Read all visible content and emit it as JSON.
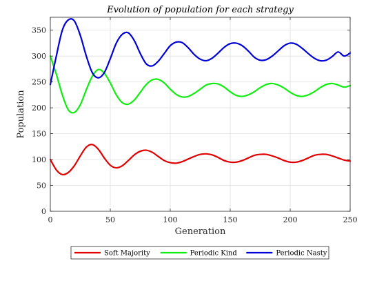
{
  "chart_data": {
    "type": "line",
    "title": "Evolution of population for each strategy",
    "xlabel": "Generation",
    "ylabel": "Population",
    "xlim": [
      0,
      250
    ],
    "ylim": [
      0,
      375
    ],
    "xticks": [
      0,
      50,
      100,
      150,
      200,
      250
    ],
    "yticks": [
      0,
      50,
      100,
      150,
      200,
      250,
      300,
      350
    ],
    "grid": true,
    "legend_position": "bottom-outside",
    "series": [
      {
        "name": "Soft Majority",
        "color": "#e00000",
        "x": [
          0,
          5,
          10,
          15,
          20,
          25,
          30,
          35,
          40,
          45,
          50,
          55,
          60,
          65,
          70,
          75,
          80,
          85,
          90,
          95,
          100,
          105,
          110,
          115,
          120,
          125,
          130,
          135,
          140,
          145,
          150,
          155,
          160,
          165,
          170,
          175,
          180,
          185,
          190,
          195,
          200,
          205,
          210,
          215,
          220,
          225,
          230,
          235,
          240,
          245,
          250
        ],
        "values": [
          100,
          80,
          71,
          75,
          88,
          107,
          124,
          129,
          120,
          103,
          89,
          84,
          88,
          98,
          109,
          116,
          118,
          114,
          106,
          98,
          94,
          93,
          96,
          101,
          106,
          110,
          111,
          109,
          104,
          98,
          95,
          95,
          98,
          103,
          108,
          110,
          110,
          107,
          103,
          98,
          95,
          95,
          98,
          103,
          108,
          110,
          110,
          107,
          103,
          99,
          97
        ]
      },
      {
        "name": "Periodic Kind",
        "color": "#10ee10",
        "x": [
          0,
          5,
          10,
          15,
          20,
          25,
          30,
          35,
          40,
          45,
          50,
          55,
          60,
          65,
          70,
          75,
          80,
          85,
          90,
          95,
          100,
          105,
          110,
          115,
          120,
          125,
          130,
          135,
          140,
          145,
          150,
          155,
          160,
          165,
          170,
          175,
          180,
          185,
          190,
          195,
          200,
          205,
          210,
          215,
          220,
          225,
          230,
          235,
          240,
          245,
          250
        ],
        "values": [
          300,
          265,
          225,
          196,
          191,
          206,
          235,
          261,
          274,
          267,
          248,
          225,
          210,
          207,
          215,
          230,
          245,
          254,
          255,
          248,
          236,
          226,
          221,
          222,
          228,
          236,
          244,
          247,
          246,
          240,
          231,
          224,
          222,
          225,
          231,
          239,
          245,
          247,
          244,
          238,
          230,
          224,
          222,
          225,
          231,
          239,
          245,
          247,
          244,
          240,
          243
        ]
      },
      {
        "name": "Periodic Nasty",
        "color": "#0000d8",
        "x": [
          0,
          5,
          10,
          15,
          20,
          25,
          30,
          35,
          40,
          45,
          50,
          55,
          60,
          65,
          70,
          75,
          80,
          85,
          90,
          95,
          100,
          105,
          110,
          115,
          120,
          125,
          130,
          135,
          140,
          145,
          150,
          155,
          160,
          165,
          170,
          175,
          180,
          185,
          190,
          195,
          200,
          205,
          210,
          215,
          220,
          225,
          230,
          235,
          240,
          245,
          250
        ],
        "values": [
          245,
          300,
          350,
          370,
          368,
          340,
          300,
          268,
          258,
          268,
          295,
          325,
          342,
          345,
          330,
          305,
          285,
          281,
          290,
          305,
          320,
          327,
          326,
          316,
          303,
          294,
          291,
          296,
          306,
          317,
          324,
          325,
          320,
          310,
          298,
          292,
          293,
          300,
          310,
          320,
          325,
          323,
          315,
          305,
          296,
          291,
          292,
          299,
          308,
          300,
          306
        ]
      }
    ]
  }
}
